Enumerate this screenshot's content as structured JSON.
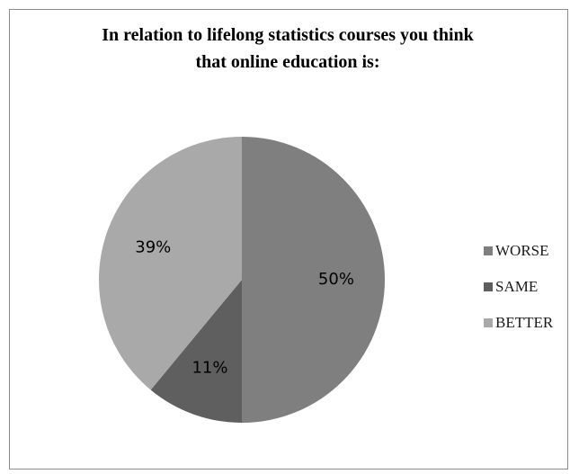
{
  "chart_data": {
    "type": "pie",
    "title_lines": [
      "In relation to lifelong statistics courses you think",
      "that online education is:"
    ],
    "slices": [
      {
        "label": "WORSE",
        "value": 50,
        "data_label": "50%",
        "color": "#7f7f7f"
      },
      {
        "label": "SAME",
        "value": 11,
        "data_label": "11%",
        "color": "#5f5f5f"
      },
      {
        "label": "BETTER",
        "value": 39,
        "data_label": "39%",
        "color": "#a9a9a9"
      }
    ],
    "legend_position": "right"
  }
}
